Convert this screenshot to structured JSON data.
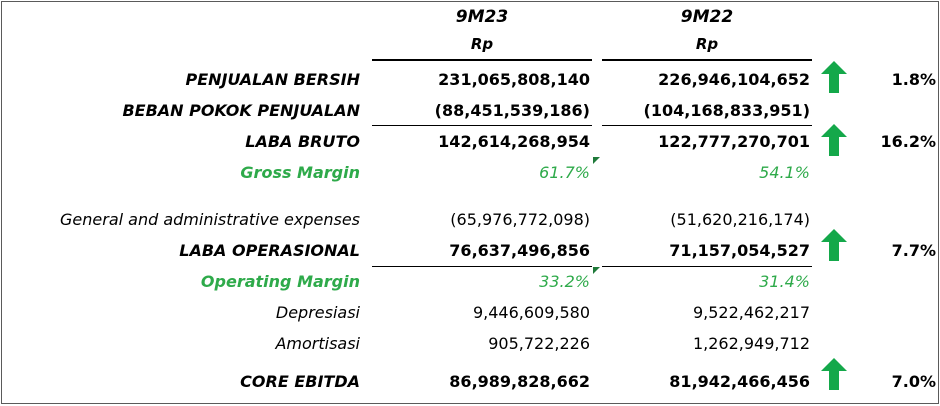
{
  "header": {
    "col1_year": "9M23",
    "col2_year": "9M22",
    "col1_unit": "Rp",
    "col2_unit": "Rp"
  },
  "rows": {
    "penjualan": {
      "label": "PENJUALAN BERSIH",
      "v1": "231,065,808,140",
      "v2": "226,946,104,652",
      "change": "1.8%"
    },
    "beban": {
      "label": "BEBAN POKOK PENJUALAN",
      "v1": "(88,451,539,186)",
      "v2": "(104,168,833,951)"
    },
    "laba_bruto": {
      "label": "LABA BRUTO",
      "v1": "142,614,268,954",
      "v2": "122,777,270,701",
      "change": "16.2%"
    },
    "gross_margin": {
      "label": "Gross Margin",
      "v1": "61.7%",
      "v2": "54.1%"
    },
    "gna": {
      "label": "General and administrative expenses",
      "v1": "(65,976,772,098)",
      "v2": "(51,620,216,174)"
    },
    "laba_operasional": {
      "label": "LABA OPERASIONAL",
      "v1": "76,637,496,856",
      "v2": "71,157,054,527",
      "change": "7.7%"
    },
    "operating_margin": {
      "label": "Operating Margin",
      "v1": "33.2%",
      "v2": "31.4%"
    },
    "depresiasi": {
      "label": "Depresiasi",
      "v1": "9,446,609,580",
      "v2": "9,522,462,217"
    },
    "amortisasi": {
      "label": "Amortisasi",
      "v1": "905,722,226",
      "v2": "1,262,949,712"
    },
    "core_ebitda": {
      "label": "CORE EBITDA",
      "v1": "86,989,828,662",
      "v2": "81,942,466,456",
      "change": "7.0%"
    }
  },
  "colors": {
    "accent_green": "#2eaa4a",
    "arrow_green": "#14a84a",
    "text": "#000000"
  },
  "icons": {
    "trend": "arrow-up-icon"
  }
}
